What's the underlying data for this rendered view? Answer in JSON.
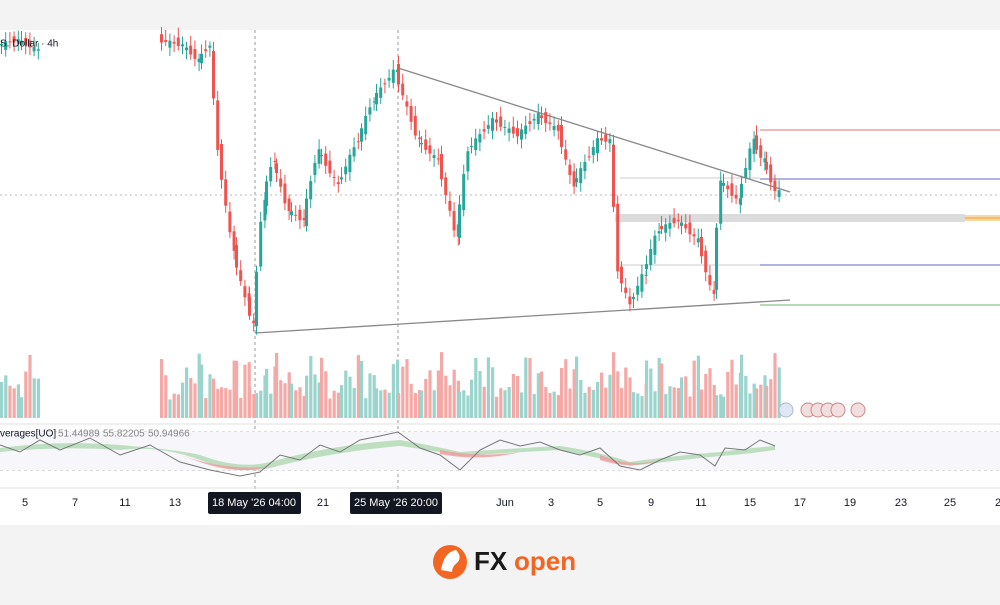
{
  "header": {
    "symbol": "S. Dollar · 4h"
  },
  "indicator": {
    "name": "verages[UO]",
    "values": [
      "51.44989",
      "55.82205",
      "50.94966"
    ]
  },
  "x_axis": {
    "labels": [
      "5",
      "7",
      "11",
      "13",
      "21",
      "Jun",
      "3",
      "5",
      "9",
      "11",
      "15",
      "17",
      "19",
      "23",
      "25",
      "2"
    ]
  },
  "crosshair_labels": [
    "18 May '26 04:00",
    "25 May '26 20:00"
  ],
  "logo": {
    "fx": "FX",
    "open": "open"
  }
}
